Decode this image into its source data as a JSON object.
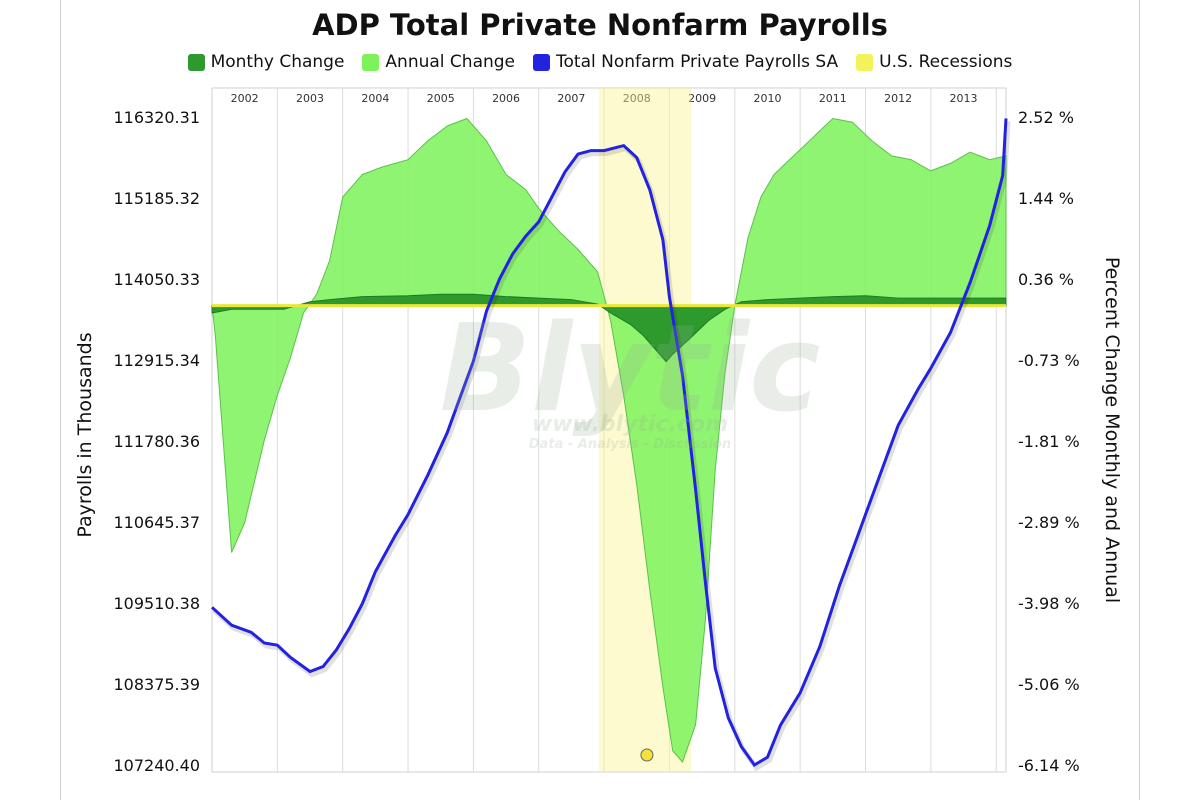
{
  "chart_data": {
    "type": "area",
    "title": "ADP Total Private Nonfarm Payrolls",
    "legend": [
      {
        "label": "Monthy Change",
        "color": "#2e9a2e"
      },
      {
        "label": "Annual Change",
        "color": "#7df25a"
      },
      {
        "label": "Total Nonfarm Private Payrolls SA",
        "color": "#2222e0"
      },
      {
        "label": "U.S. Recessions",
        "color": "#f2f25a"
      }
    ],
    "left_axis_label": "Payrolls in Thousands",
    "right_axis_label": "Percent Change Monthly and Annual",
    "left_ticks": [
      "116320.31",
      "115185.32",
      "114050.33",
      "112915.34",
      "111780.36",
      "110645.37",
      "109510.38",
      "108375.39",
      "107240.40"
    ],
    "right_ticks": [
      "2.52 %",
      "1.44 %",
      "0.36 %",
      "-0.73 %",
      "-1.81 %",
      "-2.89 %",
      "-3.98 %",
      "-5.06 %",
      "-6.14 %"
    ],
    "ylim_left": [
      107240.4,
      116320.31
    ],
    "ylim_right": [
      -6.14,
      2.52
    ],
    "years": [
      "2002",
      "2003",
      "2004",
      "2005",
      "2006",
      "2007",
      "2008",
      "2009",
      "2010",
      "2011",
      "2012",
      "2013"
    ],
    "x_range": [
      2002.0,
      2014.15
    ],
    "recession": [
      2007.92,
      2009.33
    ],
    "grid": "vertical",
    "payrolls": [
      [
        2002.0,
        109450
      ],
      [
        2002.3,
        109200
      ],
      [
        2002.6,
        109100
      ],
      [
        2002.8,
        108950
      ],
      [
        2003.0,
        108920
      ],
      [
        2003.2,
        108750
      ],
      [
        2003.5,
        108550
      ],
      [
        2003.7,
        108620
      ],
      [
        2003.9,
        108850
      ],
      [
        2004.1,
        109150
      ],
      [
        2004.3,
        109500
      ],
      [
        2004.5,
        109950
      ],
      [
        2004.8,
        110450
      ],
      [
        2005.0,
        110750
      ],
      [
        2005.3,
        111300
      ],
      [
        2005.6,
        111900
      ],
      [
        2005.8,
        112400
      ],
      [
        2006.0,
        112900
      ],
      [
        2006.2,
        113600
      ],
      [
        2006.4,
        114050
      ],
      [
        2006.6,
        114400
      ],
      [
        2006.8,
        114650
      ],
      [
        2007.0,
        114850
      ],
      [
        2007.2,
        115200
      ],
      [
        2007.4,
        115550
      ],
      [
        2007.6,
        115800
      ],
      [
        2007.8,
        115850
      ],
      [
        2008.0,
        115850
      ],
      [
        2008.3,
        115920
      ],
      [
        2008.5,
        115750
      ],
      [
        2008.7,
        115300
      ],
      [
        2008.9,
        114600
      ],
      [
        2009.0,
        113800
      ],
      [
        2009.2,
        112700
      ],
      [
        2009.4,
        111100
      ],
      [
        2009.55,
        109800
      ],
      [
        2009.7,
        108600
      ],
      [
        2009.9,
        107900
      ],
      [
        2010.1,
        107500
      ],
      [
        2010.3,
        107240
      ],
      [
        2010.5,
        107350
      ],
      [
        2010.7,
        107800
      ],
      [
        2011.0,
        108250
      ],
      [
        2011.3,
        108900
      ],
      [
        2011.6,
        109750
      ],
      [
        2011.9,
        110500
      ],
      [
        2012.0,
        110750
      ],
      [
        2012.3,
        111500
      ],
      [
        2012.5,
        112000
      ],
      [
        2012.8,
        112500
      ],
      [
        2013.0,
        112800
      ],
      [
        2013.3,
        113300
      ],
      [
        2013.6,
        114000
      ],
      [
        2013.9,
        114800
      ],
      [
        2014.1,
        115500
      ],
      [
        2014.15,
        116300
      ]
    ],
    "annual_change": [
      [
        2002.0,
        0.0
      ],
      [
        2002.05,
        -0.4
      ],
      [
        2002.3,
        -3.3
      ],
      [
        2002.5,
        -2.9
      ],
      [
        2002.8,
        -1.8
      ],
      [
        2003.0,
        -1.2
      ],
      [
        2003.2,
        -0.7
      ],
      [
        2003.4,
        -0.1
      ],
      [
        2003.6,
        0.15
      ],
      [
        2003.8,
        0.6
      ],
      [
        2004.0,
        1.45
      ],
      [
        2004.3,
        1.75
      ],
      [
        2004.6,
        1.85
      ],
      [
        2005.0,
        1.95
      ],
      [
        2005.3,
        2.2
      ],
      [
        2005.6,
        2.4
      ],
      [
        2005.9,
        2.5
      ],
      [
        2006.2,
        2.2
      ],
      [
        2006.5,
        1.75
      ],
      [
        2006.8,
        1.55
      ],
      [
        2007.0,
        1.3
      ],
      [
        2007.3,
        1.0
      ],
      [
        2007.6,
        0.75
      ],
      [
        2007.9,
        0.45
      ],
      [
        2008.1,
        -0.2
      ],
      [
        2008.3,
        -1.2
      ],
      [
        2008.5,
        -2.4
      ],
      [
        2008.7,
        -3.8
      ],
      [
        2008.9,
        -5.1
      ],
      [
        2009.05,
        -5.95
      ],
      [
        2009.2,
        -6.1
      ],
      [
        2009.4,
        -5.6
      ],
      [
        2009.55,
        -4.2
      ],
      [
        2009.7,
        -2.2
      ],
      [
        2009.85,
        -0.9
      ],
      [
        2010.0,
        0.0
      ],
      [
        2010.2,
        0.9
      ],
      [
        2010.4,
        1.45
      ],
      [
        2010.6,
        1.75
      ],
      [
        2010.9,
        2.0
      ],
      [
        2011.2,
        2.25
      ],
      [
        2011.5,
        2.5
      ],
      [
        2011.8,
        2.45
      ],
      [
        2012.1,
        2.2
      ],
      [
        2012.4,
        2.0
      ],
      [
        2012.7,
        1.95
      ],
      [
        2013.0,
        1.8
      ],
      [
        2013.3,
        1.9
      ],
      [
        2013.6,
        2.05
      ],
      [
        2013.9,
        1.95
      ],
      [
        2014.15,
        2.0
      ]
    ],
    "monthly_change": [
      [
        2002.0,
        -0.1
      ],
      [
        2002.3,
        -0.05
      ],
      [
        2002.8,
        -0.05
      ],
      [
        2003.1,
        -0.05
      ],
      [
        2003.5,
        0.05
      ],
      [
        2003.8,
        0.08
      ],
      [
        2004.3,
        0.12
      ],
      [
        2005.0,
        0.13
      ],
      [
        2005.5,
        0.15
      ],
      [
        2006.0,
        0.15
      ],
      [
        2006.5,
        0.12
      ],
      [
        2007.0,
        0.1
      ],
      [
        2007.5,
        0.08
      ],
      [
        2007.9,
        0.02
      ],
      [
        2008.1,
        -0.1
      ],
      [
        2008.4,
        -0.25
      ],
      [
        2008.6,
        -0.4
      ],
      [
        2008.8,
        -0.6
      ],
      [
        2008.95,
        -0.75
      ],
      [
        2009.05,
        -0.65
      ],
      [
        2009.3,
        -0.45
      ],
      [
        2009.6,
        -0.2
      ],
      [
        2009.85,
        -0.05
      ],
      [
        2010.1,
        0.05
      ],
      [
        2010.5,
        0.08
      ],
      [
        2011.0,
        0.1
      ],
      [
        2011.5,
        0.12
      ],
      [
        2012.0,
        0.13
      ],
      [
        2012.5,
        0.1
      ],
      [
        2013.0,
        0.1
      ],
      [
        2013.5,
        0.1
      ],
      [
        2014.15,
        0.1
      ]
    ]
  },
  "watermark": {
    "brand": "Blytic",
    "url": "www.blytic.com",
    "tagline": "Data - Analysis - Discussion"
  }
}
